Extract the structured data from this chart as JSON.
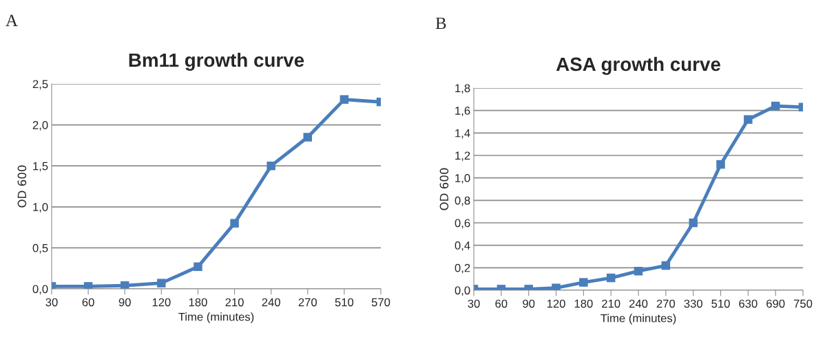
{
  "chart_data": [
    {
      "type": "line",
      "title": "Bm11 growth curve",
      "xlabel": "Time (minutes)",
      "ylabel": "OD 600",
      "annotations": [
        "A"
      ],
      "categories": [
        "30",
        "60",
        "90",
        "120",
        "180",
        "210",
        "240",
        "270",
        "510",
        "570"
      ],
      "series": [
        {
          "color": "#4a7ebb",
          "values": [
            0.03,
            0.03,
            0.04,
            0.07,
            0.27,
            0.8,
            1.5,
            1.85,
            2.31,
            2.28
          ]
        }
      ],
      "ylim": [
        0,
        2.5
      ],
      "yticks": [
        {
          "value": 0,
          "label": "0,0"
        },
        {
          "value": 0.5,
          "label": "0,5"
        },
        {
          "value": 1,
          "label": "1,0"
        },
        {
          "value": 1.5,
          "label": "1,5"
        },
        {
          "value": 2,
          "label": "2,0"
        },
        {
          "value": 2.5,
          "label": "2,5"
        }
      ],
      "grid": "y",
      "marker": "square",
      "line_style": "solid"
    },
    {
      "type": "line",
      "title": "ASA growth curve",
      "xlabel": "Time (minutes)",
      "ylabel": "OD 600",
      "annotations": [
        "B"
      ],
      "categories": [
        "30",
        "60",
        "90",
        "120",
        "180",
        "210",
        "240",
        "270",
        "330",
        "510",
        "630",
        "690",
        "750"
      ],
      "series": [
        {
          "color": "#4a7ebb",
          "values": [
            0.01,
            0.01,
            0.01,
            0.02,
            0.07,
            0.11,
            0.17,
            0.22,
            0.6,
            1.12,
            1.52,
            1.64,
            1.63
          ]
        }
      ],
      "ylim": [
        0,
        1.8
      ],
      "yticks": [
        {
          "value": 0,
          "label": "0,0"
        },
        {
          "value": 0.2,
          "label": "0,2"
        },
        {
          "value": 0.4,
          "label": "0,4"
        },
        {
          "value": 0.6,
          "label": "0,6"
        },
        {
          "value": 0.8,
          "label": "0,8"
        },
        {
          "value": 1,
          "label": "1,0"
        },
        {
          "value": 1.2,
          "label": "1,2"
        },
        {
          "value": 1.4,
          "label": "1,4"
        },
        {
          "value": 1.6,
          "label": "1,6"
        },
        {
          "value": 1.8,
          "label": "1,8"
        }
      ],
      "grid": "y",
      "marker": "square",
      "line_style": "solid"
    }
  ]
}
